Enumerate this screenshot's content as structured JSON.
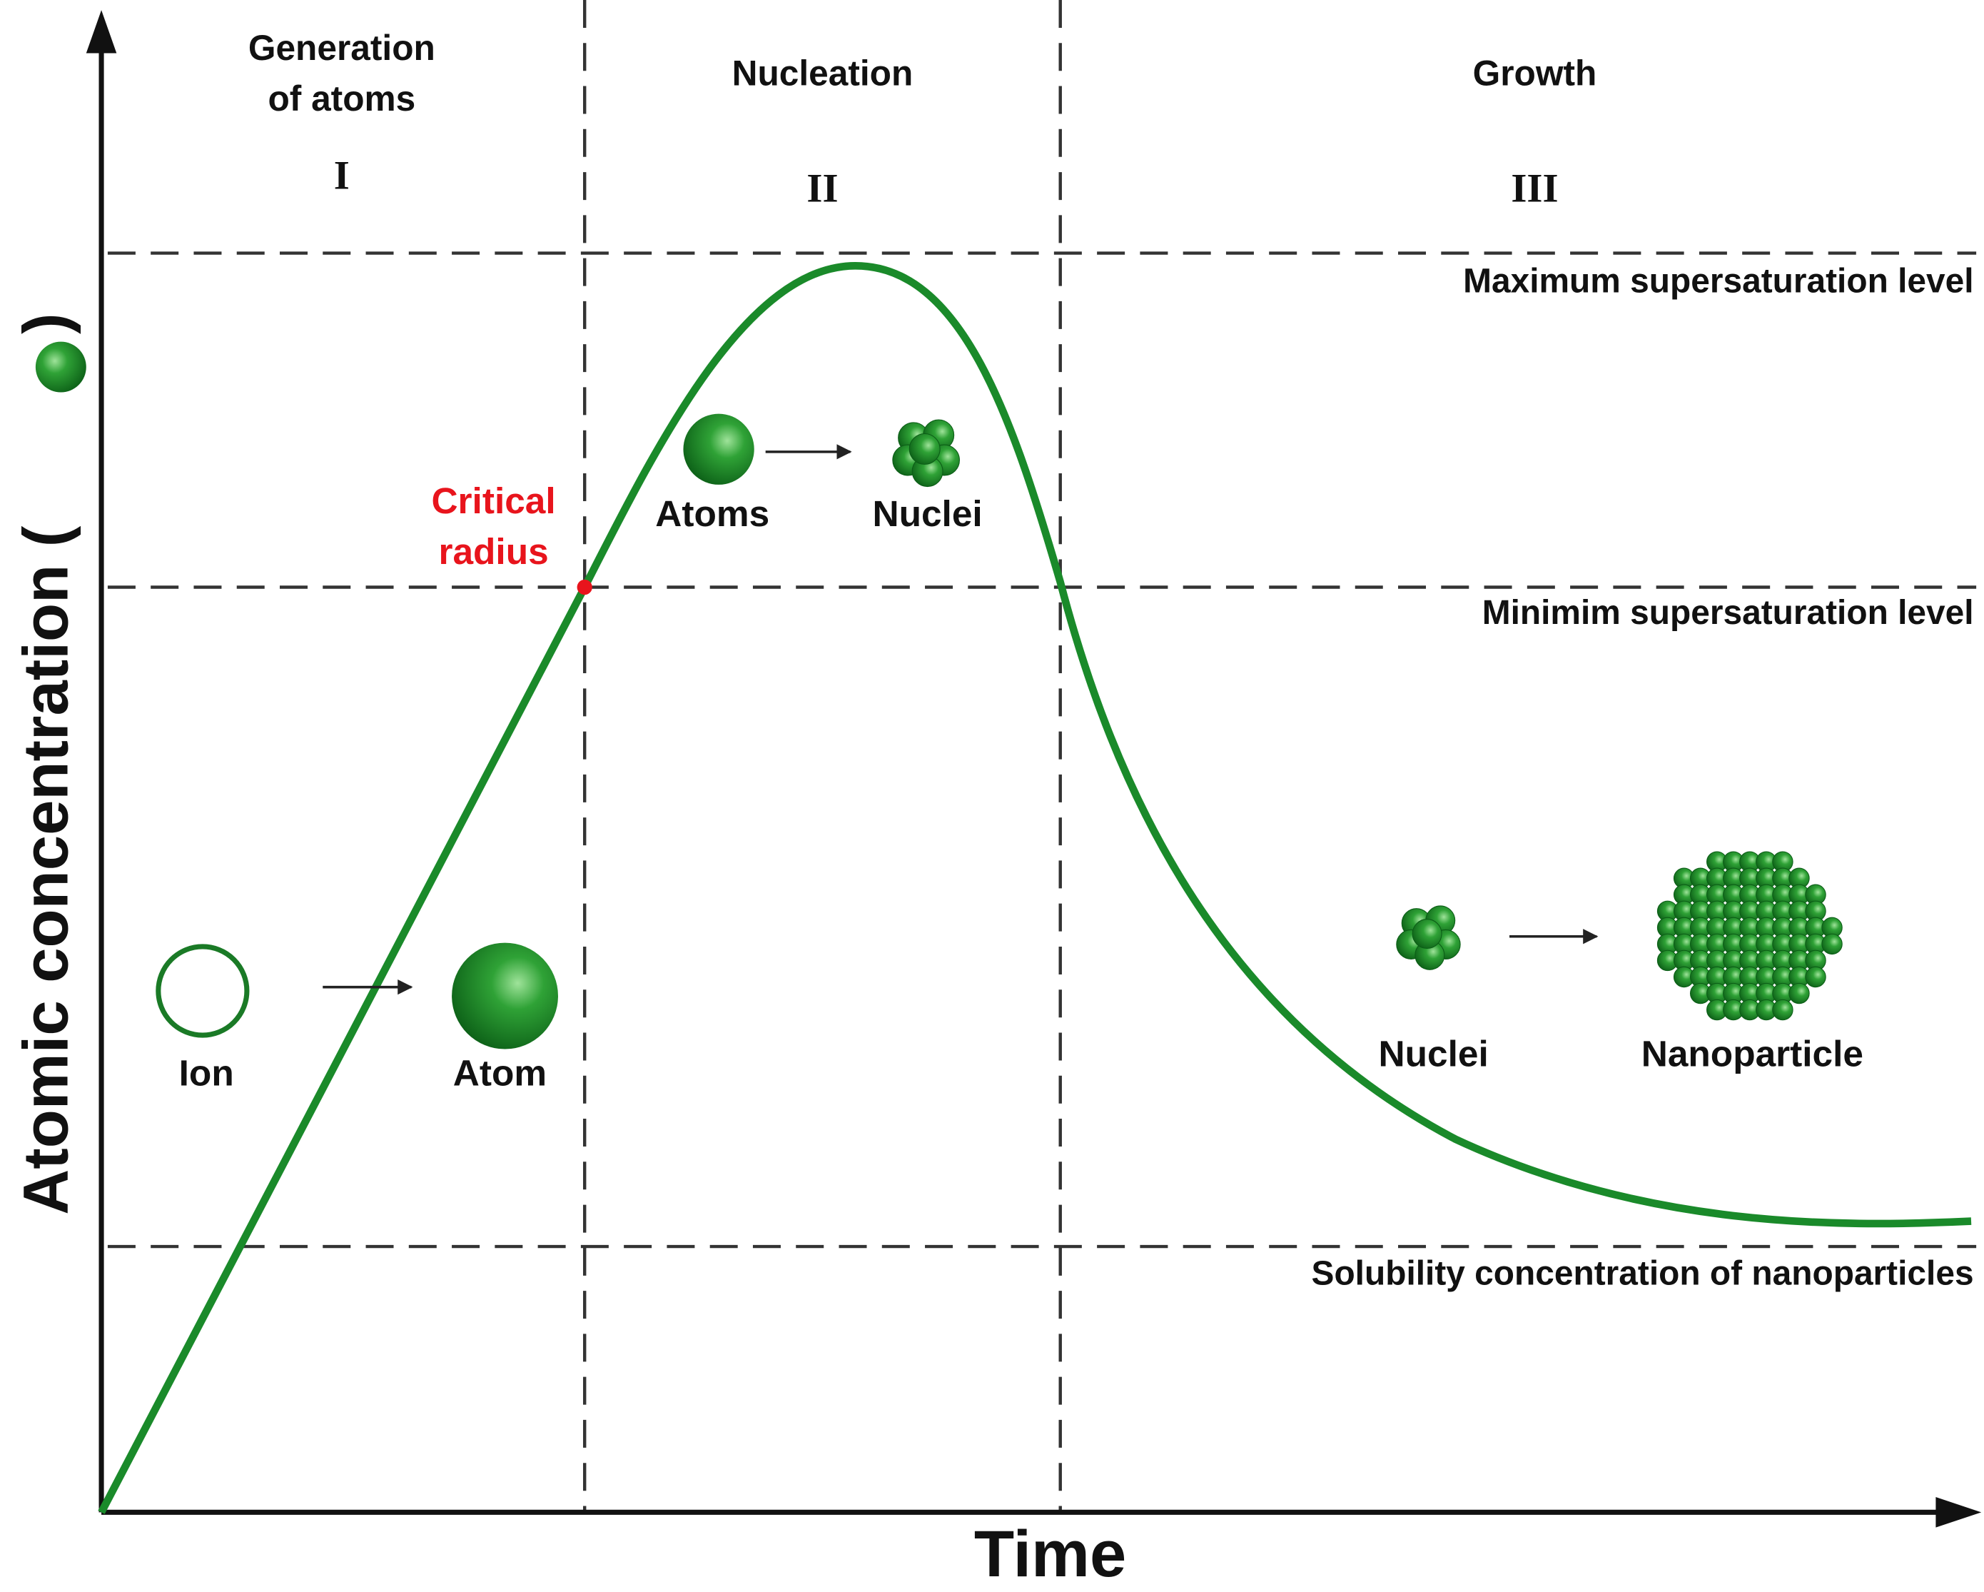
{
  "axes": {
    "y_label": "Atomic concentration (",
    "y_label_close": ")",
    "x_label": "Time"
  },
  "stages": [
    {
      "title_lines": [
        "Generation",
        "of atoms"
      ],
      "numeral": "I"
    },
    {
      "title_lines": [
        "Nucleation"
      ],
      "numeral": "II"
    },
    {
      "title_lines": [
        "Growth"
      ],
      "numeral": "III"
    }
  ],
  "levels": [
    "Maximum supersaturation level",
    "Minimim supersaturation level",
    "Solubility concentration of nanoparticles"
  ],
  "annotation": {
    "lines": [
      "Critical",
      "radius"
    ]
  },
  "illustrations": {
    "stage1": [
      "Ion",
      "Atom"
    ],
    "stage2": [
      "Atoms",
      "Nuclei"
    ],
    "stage3": [
      "Nuclei",
      "Nanoparticle"
    ]
  }
}
